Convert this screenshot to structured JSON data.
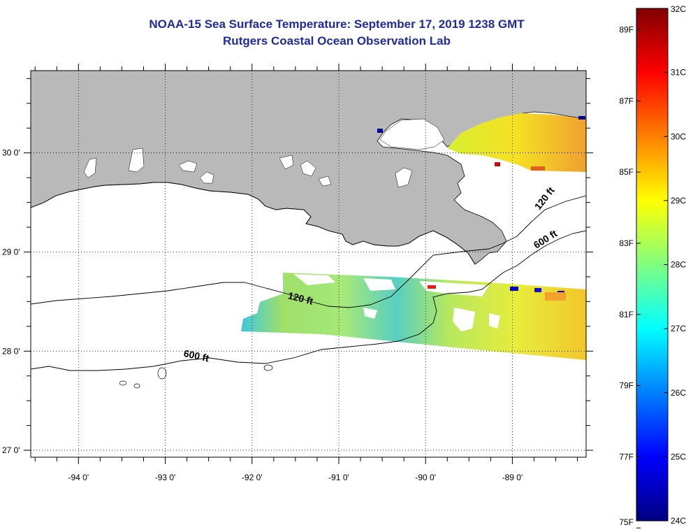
{
  "title": "NOAA-15 Sea Surface Temperature:  September 17, 2019 1238 GMT",
  "subtitle": "Rutgers Coastal Ocean Observation Lab",
  "map": {
    "lon_range": [
      -94.55,
      -88.15
    ],
    "lat_range": [
      26.93,
      30.83
    ],
    "lon_ticks": [
      {
        "value": -94,
        "label": "-94 0'"
      },
      {
        "value": -93,
        "label": "-93 0'"
      },
      {
        "value": -92,
        "label": "-92 0'"
      },
      {
        "value": -91,
        "label": "-91 0'"
      },
      {
        "value": -90,
        "label": "-90 0'"
      },
      {
        "value": -89,
        "label": "-89 0'"
      }
    ],
    "lat_ticks": [
      {
        "value": 30,
        "label": "30 0'"
      },
      {
        "value": 29,
        "label": "29 0'"
      },
      {
        "value": 28,
        "label": "28 0'"
      },
      {
        "value": 27,
        "label": "27 0'"
      }
    ],
    "land_color": "#b9b9b9",
    "contour_labels": [
      {
        "text": "120 ft",
        "lon": -91.45,
        "lat": 28.5,
        "angle": 14
      },
      {
        "text": "600 ft",
        "lon": -92.65,
        "lat": 27.92,
        "angle": 12
      },
      {
        "text": "120 ft",
        "lon": -88.6,
        "lat": 29.52,
        "angle": -52
      },
      {
        "text": "600 ft",
        "lon": -88.6,
        "lat": 29.1,
        "angle": -32
      }
    ]
  },
  "colorbar": {
    "celsius_ticks": [
      "32C",
      "31C",
      "30C",
      "29C",
      "28C",
      "27C",
      "26C",
      "25C",
      "24C"
    ],
    "fahrenheit_ticks": [
      "89F",
      "87F",
      "85F",
      "83F",
      "81F",
      "79F",
      "77F",
      "75F"
    ],
    "range_c": [
      24,
      32
    ],
    "colors": [
      "#000080",
      "#0000ff",
      "#0080ff",
      "#00ffff",
      "#80ff80",
      "#ffff00",
      "#ff8000",
      "#ff0000",
      "#800000"
    ]
  }
}
